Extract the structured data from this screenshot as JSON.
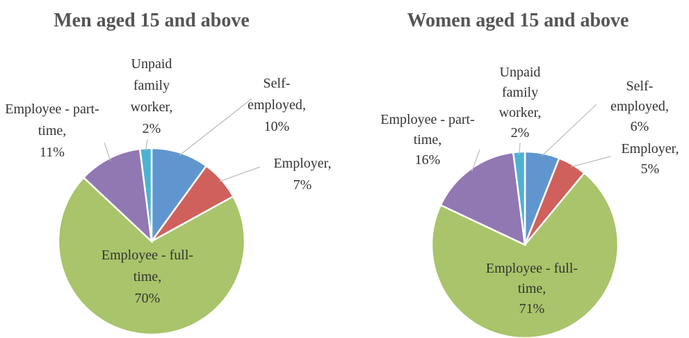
{
  "chart_data": [
    {
      "type": "pie",
      "title": "Men aged 15 and above",
      "categories": [
        "Self-employed",
        "Employer",
        "Employee - full-time",
        "Employee - part-time",
        "Unpaid family worker"
      ],
      "values": [
        10,
        7,
        70,
        11,
        2
      ],
      "value_labels": [
        "10%",
        "7%",
        "70%",
        "11%",
        "2%"
      ],
      "colors": [
        "#6096cf",
        "#d0605b",
        "#a9c46a",
        "#9178b2",
        "#4bb3d1"
      ]
    },
    {
      "type": "pie",
      "title": "Women aged 15 and above",
      "categories": [
        "Self-employed",
        "Employer",
        "Employee - full-time",
        "Employee - part-time",
        "Unpaid family worker"
      ],
      "values": [
        6,
        5,
        71,
        16,
        2
      ],
      "value_labels": [
        "6%",
        "5%",
        "71%",
        "16%",
        "2%"
      ],
      "colors": [
        "#6096cf",
        "#d0605b",
        "#a9c46a",
        "#9178b2",
        "#4bb3d1"
      ]
    }
  ]
}
